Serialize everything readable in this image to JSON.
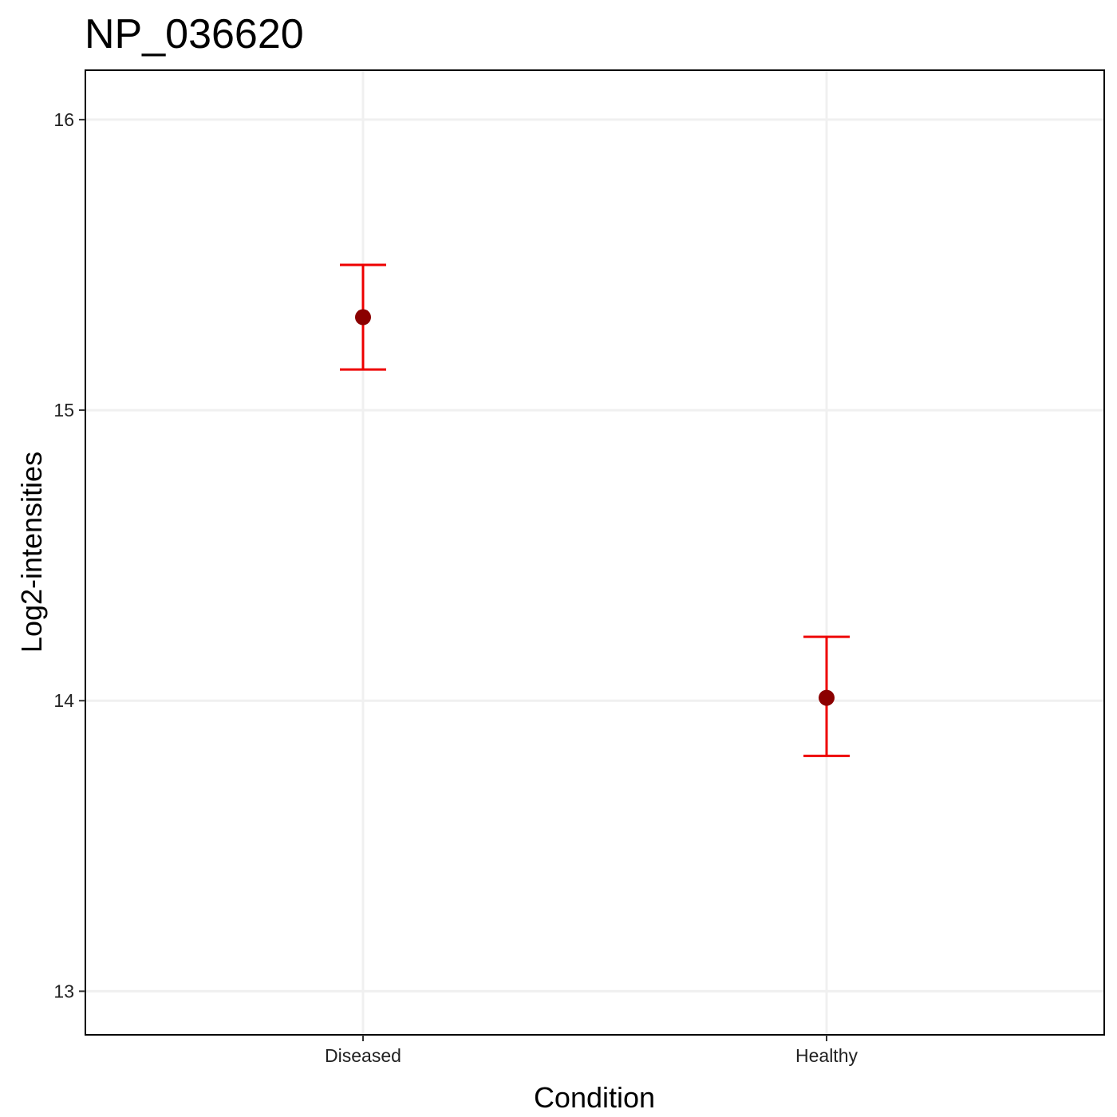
{
  "chart_data": {
    "type": "scatter",
    "title": "NP_036620",
    "xlabel": "Condition",
    "ylabel": "Log2-intensities",
    "categories": [
      "Diseased",
      "Healthy"
    ],
    "y_ticks": [
      "13",
      "14",
      "15",
      "16"
    ],
    "ylim": [
      12.85,
      16.17
    ],
    "grid": true,
    "points": [
      {
        "category": "Diseased",
        "y": 15.32,
        "lower": 15.14,
        "upper": 15.5
      },
      {
        "category": "Healthy",
        "y": 14.01,
        "lower": 13.81,
        "upper": 14.22
      }
    ],
    "colors": {
      "point": "#8b0000",
      "errorbar": "#ee0000",
      "grid": "#f0f0f0",
      "panel_border": "#000000"
    }
  }
}
